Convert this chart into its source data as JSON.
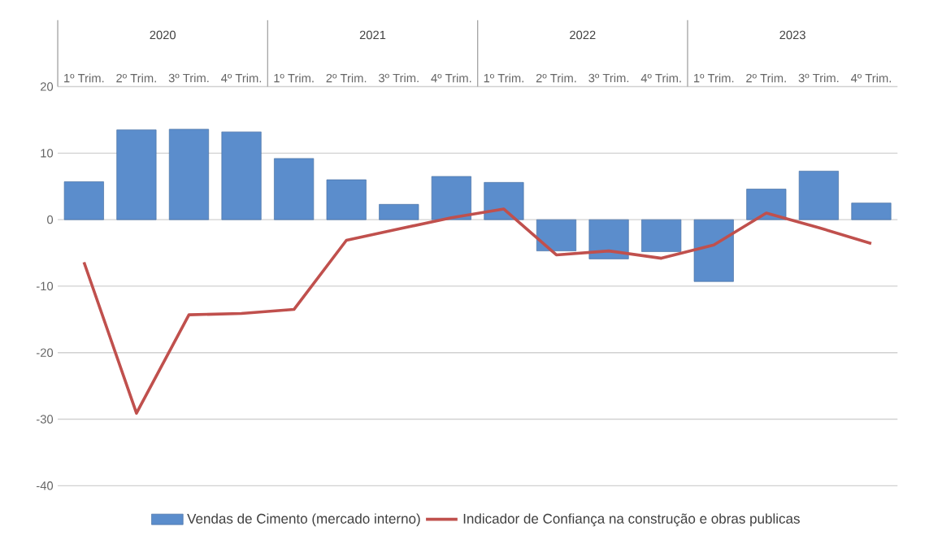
{
  "chart_data": {
    "type": "bar",
    "categories": [
      "1º Trim.",
      "2º Trim.",
      "3º Trim.",
      "4º Trim.",
      "1º Trim.",
      "2º Trim.",
      "3º Trim.",
      "4º Trim.",
      "1º Trim.",
      "2º Trim.",
      "3º Trim.",
      "4º Trim.",
      "1º Trim.",
      "2º Trim.",
      "3º Trim.",
      "4º Trim."
    ],
    "annotations": [
      "2020",
      "2021",
      "2022",
      "2023"
    ],
    "series": [
      {
        "name": "Vendas de Cimento (mercado interno)",
        "color": "#5b8dcc",
        "values": [
          5.7,
          13.5,
          13.6,
          13.2,
          9.2,
          6.0,
          2.3,
          6.5,
          5.6,
          -4.7,
          -5.9,
          -4.8,
          -9.3,
          4.6,
          7.3,
          2.5
        ]
      },
      {
        "name": "Indicador de Confiança na construção e obras publicas",
        "type": "line",
        "color": "#c0504d",
        "values": [
          -6.4,
          -29.1,
          -14.3,
          -14.1,
          -13.5,
          -3.1,
          -1.4,
          0.3,
          1.6,
          -5.3,
          -4.7,
          -5.8,
          -3.8,
          1.0,
          -1.2,
          -3.6
        ]
      }
    ],
    "ylim": [
      -40,
      20
    ],
    "yticks": [
      -40,
      -30,
      -20,
      -10,
      0,
      10,
      20
    ],
    "grid": "y",
    "legend": "bottom"
  }
}
